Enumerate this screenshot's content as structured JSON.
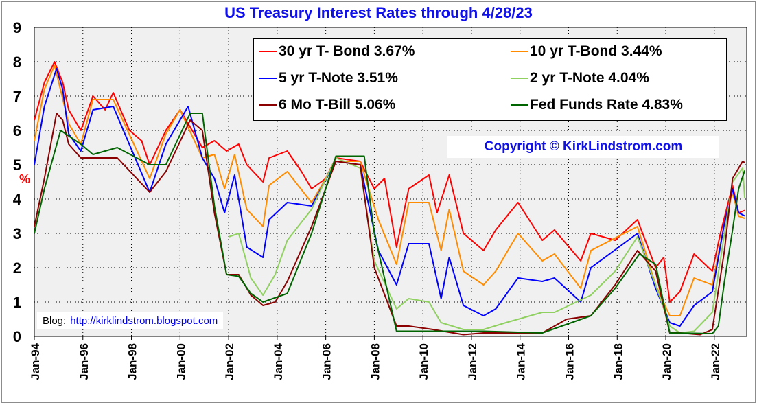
{
  "chart_data": {
    "type": "line",
    "title": "US Treasury Interest Rates through 4/28/23",
    "ylabel": "%",
    "ylim": [
      0,
      9
    ],
    "yticks": [
      "0",
      "1",
      "2",
      "3",
      "4",
      "5",
      "6",
      "7",
      "8",
      "9"
    ],
    "xlim": [
      "1994-01",
      "2023-05"
    ],
    "xticks": [
      {
        "label": "Jan-94",
        "date": "1994-01"
      },
      {
        "label": "Jan-96",
        "date": "1996-01"
      },
      {
        "label": "Jan-98",
        "date": "1998-01"
      },
      {
        "label": "Jan-00",
        "date": "2000-01"
      },
      {
        "label": "Jan-02",
        "date": "2002-01"
      },
      {
        "label": "Jan-04",
        "date": "2004-01"
      },
      {
        "label": "Jan-06",
        "date": "2006-01"
      },
      {
        "label": "Jan-08",
        "date": "2008-01"
      },
      {
        "label": "Jan-10",
        "date": "2010-01"
      },
      {
        "label": "Jan-12",
        "date": "2012-01"
      },
      {
        "label": "Jan-14",
        "date": "2014-01"
      },
      {
        "label": "Jan-16",
        "date": "2016-01"
      },
      {
        "label": "Jan-18",
        "date": "2018-01"
      },
      {
        "label": "Jan-20",
        "date": "2020-01"
      },
      {
        "label": "Jan-22",
        "date": "2022-01"
      }
    ],
    "grid": true,
    "legend_position": "top-right",
    "series": [
      {
        "name": "30 yr T- Bond 3.67%",
        "color": "#ff0000",
        "points": [
          [
            "1994-01",
            6.3
          ],
          [
            "1994-06",
            7.4
          ],
          [
            "1994-11",
            8.0
          ],
          [
            "1995-03",
            7.4
          ],
          [
            "1995-06",
            6.6
          ],
          [
            "1995-12",
            6.0
          ],
          [
            "1996-06",
            7.0
          ],
          [
            "1996-12",
            6.6
          ],
          [
            "1997-04",
            7.1
          ],
          [
            "1997-12",
            6.0
          ],
          [
            "1998-06",
            5.7
          ],
          [
            "1998-10",
            5.0
          ],
          [
            "1999-06",
            6.0
          ],
          [
            "2000-01",
            6.6
          ],
          [
            "2000-05",
            6.2
          ],
          [
            "2000-12",
            5.5
          ],
          [
            "2001-06",
            5.7
          ],
          [
            "2001-12",
            5.4
          ],
          [
            "2002-06",
            5.6
          ],
          [
            "2002-10",
            5.0
          ],
          [
            "2003-06",
            4.5
          ],
          [
            "2003-09",
            5.2
          ],
          [
            "2004-06",
            5.4
          ],
          [
            "2005-01",
            4.8
          ],
          [
            "2005-06",
            4.3
          ],
          [
            "2006-01",
            4.6
          ],
          [
            "2006-06",
            5.2
          ],
          [
            "2007-06",
            5.1
          ],
          [
            "2008-01",
            4.3
          ],
          [
            "2008-06",
            4.6
          ],
          [
            "2008-12",
            2.6
          ],
          [
            "2009-06",
            4.3
          ],
          [
            "2010-04",
            4.7
          ],
          [
            "2010-08",
            3.6
          ],
          [
            "2011-02",
            4.7
          ],
          [
            "2011-09",
            3.0
          ],
          [
            "2012-07",
            2.5
          ],
          [
            "2013-01",
            3.1
          ],
          [
            "2013-12",
            3.9
          ],
          [
            "2014-12",
            2.8
          ],
          [
            "2015-06",
            3.1
          ],
          [
            "2016-07",
            2.2
          ],
          [
            "2016-12",
            3.0
          ],
          [
            "2017-12",
            2.8
          ],
          [
            "2018-11",
            3.4
          ],
          [
            "2019-08",
            2.0
          ],
          [
            "2019-12",
            2.3
          ],
          [
            "2020-03",
            1.0
          ],
          [
            "2020-08",
            1.3
          ],
          [
            "2021-03",
            2.4
          ],
          [
            "2021-12",
            1.9
          ],
          [
            "2022-04",
            3.0
          ],
          [
            "2022-10",
            4.4
          ],
          [
            "2023-01",
            3.6
          ],
          [
            "2023-04",
            3.67
          ]
        ]
      },
      {
        "name": "10 yr T-Bond 3.44%",
        "color": "#ff8c00",
        "points": [
          [
            "1994-01",
            5.7
          ],
          [
            "1994-06",
            7.2
          ],
          [
            "1994-11",
            7.9
          ],
          [
            "1995-06",
            6.2
          ],
          [
            "1995-12",
            5.6
          ],
          [
            "1996-06",
            6.9
          ],
          [
            "1997-04",
            6.9
          ],
          [
            "1998-10",
            4.6
          ],
          [
            "1999-06",
            5.9
          ],
          [
            "2000-01",
            6.6
          ],
          [
            "2000-12",
            5.2
          ],
          [
            "2001-06",
            5.3
          ],
          [
            "2001-11",
            4.3
          ],
          [
            "2002-04",
            5.3
          ],
          [
            "2002-10",
            3.7
          ],
          [
            "2003-06",
            3.2
          ],
          [
            "2003-09",
            4.4
          ],
          [
            "2004-06",
            4.8
          ],
          [
            "2005-06",
            3.9
          ],
          [
            "2006-06",
            5.1
          ],
          [
            "2007-06",
            5.1
          ],
          [
            "2008-03",
            3.4
          ],
          [
            "2008-12",
            2.1
          ],
          [
            "2009-06",
            3.9
          ],
          [
            "2010-04",
            3.9
          ],
          [
            "2010-10",
            2.5
          ],
          [
            "2011-02",
            3.7
          ],
          [
            "2011-09",
            1.9
          ],
          [
            "2012-07",
            1.5
          ],
          [
            "2013-01",
            1.9
          ],
          [
            "2013-12",
            3.0
          ],
          [
            "2014-12",
            2.2
          ],
          [
            "2015-06",
            2.4
          ],
          [
            "2016-07",
            1.4
          ],
          [
            "2016-12",
            2.5
          ],
          [
            "2018-11",
            3.2
          ],
          [
            "2019-08",
            1.5
          ],
          [
            "2020-03",
            0.6
          ],
          [
            "2020-08",
            0.6
          ],
          [
            "2021-03",
            1.7
          ],
          [
            "2021-12",
            1.5
          ],
          [
            "2022-06",
            3.3
          ],
          [
            "2022-10",
            4.2
          ],
          [
            "2023-01",
            3.5
          ],
          [
            "2023-04",
            3.44
          ]
        ]
      },
      {
        "name": "5 yr T-Note 3.51%",
        "color": "#0000ff",
        "points": [
          [
            "1994-01",
            5.0
          ],
          [
            "1994-06",
            6.7
          ],
          [
            "1994-12",
            7.8
          ],
          [
            "1995-03",
            7.2
          ],
          [
            "1995-06",
            5.9
          ],
          [
            "1995-12",
            5.4
          ],
          [
            "1996-06",
            6.6
          ],
          [
            "1997-04",
            6.7
          ],
          [
            "1998-10",
            4.2
          ],
          [
            "1999-06",
            5.6
          ],
          [
            "2000-05",
            6.7
          ],
          [
            "2000-12",
            5.2
          ],
          [
            "2001-06",
            4.6
          ],
          [
            "2001-11",
            3.6
          ],
          [
            "2002-04",
            4.7
          ],
          [
            "2002-10",
            2.6
          ],
          [
            "2003-06",
            2.3
          ],
          [
            "2003-09",
            3.4
          ],
          [
            "2004-06",
            3.9
          ],
          [
            "2005-06",
            3.8
          ],
          [
            "2006-06",
            5.1
          ],
          [
            "2007-06",
            5.0
          ],
          [
            "2008-03",
            2.5
          ],
          [
            "2008-12",
            1.5
          ],
          [
            "2009-06",
            2.7
          ],
          [
            "2010-04",
            2.7
          ],
          [
            "2010-10",
            1.1
          ],
          [
            "2011-02",
            2.3
          ],
          [
            "2011-09",
            0.9
          ],
          [
            "2012-07",
            0.6
          ],
          [
            "2013-01",
            0.8
          ],
          [
            "2013-12",
            1.7
          ],
          [
            "2014-12",
            1.6
          ],
          [
            "2015-06",
            1.7
          ],
          [
            "2016-07",
            1.0
          ],
          [
            "2016-12",
            2.0
          ],
          [
            "2018-11",
            3.0
          ],
          [
            "2019-08",
            1.4
          ],
          [
            "2020-03",
            0.4
          ],
          [
            "2020-08",
            0.3
          ],
          [
            "2021-03",
            0.9
          ],
          [
            "2021-12",
            1.3
          ],
          [
            "2022-06",
            3.3
          ],
          [
            "2022-10",
            4.3
          ],
          [
            "2023-01",
            3.6
          ],
          [
            "2023-04",
            3.51
          ]
        ]
      },
      {
        "name": "2 yr T-Note 4.04%",
        "color": "#90d060",
        "points": [
          [
            "2002-01",
            2.9
          ],
          [
            "2002-06",
            3.0
          ],
          [
            "2002-12",
            1.7
          ],
          [
            "2003-06",
            1.2
          ],
          [
            "2003-12",
            1.8
          ],
          [
            "2004-06",
            2.8
          ],
          [
            "2005-06",
            3.7
          ],
          [
            "2006-06",
            5.2
          ],
          [
            "2007-06",
            4.9
          ],
          [
            "2008-01",
            2.2
          ],
          [
            "2008-12",
            0.8
          ],
          [
            "2009-06",
            1.1
          ],
          [
            "2010-04",
            1.0
          ],
          [
            "2010-10",
            0.4
          ],
          [
            "2011-09",
            0.2
          ],
          [
            "2012-07",
            0.2
          ],
          [
            "2013-06",
            0.4
          ],
          [
            "2014-12",
            0.7
          ],
          [
            "2015-06",
            0.7
          ],
          [
            "2016-12",
            1.2
          ],
          [
            "2017-12",
            1.9
          ],
          [
            "2018-11",
            2.9
          ],
          [
            "2019-08",
            1.5
          ],
          [
            "2020-03",
            0.3
          ],
          [
            "2020-08",
            0.1
          ],
          [
            "2021-03",
            0.15
          ],
          [
            "2021-12",
            0.7
          ],
          [
            "2022-06",
            3.0
          ],
          [
            "2022-10",
            4.5
          ],
          [
            "2023-03",
            4.9
          ],
          [
            "2023-04",
            4.04
          ]
        ]
      },
      {
        "name": "6 Mo T-Bill 5.06%",
        "color": "#8b0000",
        "points": [
          [
            "1994-01",
            3.2
          ],
          [
            "1994-06",
            4.6
          ],
          [
            "1994-12",
            6.5
          ],
          [
            "1995-03",
            6.3
          ],
          [
            "1995-06",
            5.6
          ],
          [
            "1995-12",
            5.2
          ],
          [
            "1996-06",
            5.2
          ],
          [
            "1997-06",
            5.2
          ],
          [
            "1998-10",
            4.2
          ],
          [
            "1999-06",
            4.8
          ],
          [
            "2000-06",
            6.3
          ],
          [
            "2000-12",
            6.0
          ],
          [
            "2001-06",
            3.6
          ],
          [
            "2001-12",
            1.8
          ],
          [
            "2002-06",
            1.8
          ],
          [
            "2002-12",
            1.2
          ],
          [
            "2003-06",
            0.9
          ],
          [
            "2003-12",
            1.0
          ],
          [
            "2004-06",
            1.6
          ],
          [
            "2005-06",
            3.2
          ],
          [
            "2006-06",
            5.1
          ],
          [
            "2007-06",
            5.0
          ],
          [
            "2008-01",
            2.0
          ],
          [
            "2008-12",
            0.3
          ],
          [
            "2009-06",
            0.3
          ],
          [
            "2010-06",
            0.2
          ],
          [
            "2011-09",
            0.05
          ],
          [
            "2012-07",
            0.1
          ],
          [
            "2013-06",
            0.1
          ],
          [
            "2014-12",
            0.1
          ],
          [
            "2015-12",
            0.5
          ],
          [
            "2016-12",
            0.6
          ],
          [
            "2017-12",
            1.5
          ],
          [
            "2018-11",
            2.5
          ],
          [
            "2019-08",
            1.9
          ],
          [
            "2020-03",
            0.1
          ],
          [
            "2020-08",
            0.1
          ],
          [
            "2021-06",
            0.05
          ],
          [
            "2021-12",
            0.2
          ],
          [
            "2022-06",
            2.5
          ],
          [
            "2022-10",
            4.6
          ],
          [
            "2023-03",
            5.1
          ],
          [
            "2023-04",
            5.06
          ]
        ]
      },
      {
        "name": "Fed Funds Rate 4.83%",
        "color": "#006400",
        "points": [
          [
            "1994-01",
            3.0
          ],
          [
            "1994-06",
            4.3
          ],
          [
            "1995-02",
            6.0
          ],
          [
            "1995-12",
            5.6
          ],
          [
            "1996-06",
            5.3
          ],
          [
            "1997-06",
            5.5
          ],
          [
            "1998-10",
            5.0
          ],
          [
            "1999-06",
            5.0
          ],
          [
            "2000-06",
            6.5
          ],
          [
            "2000-12",
            6.5
          ],
          [
            "2001-06",
            3.8
          ],
          [
            "2001-12",
            1.8
          ],
          [
            "2002-06",
            1.75
          ],
          [
            "2002-12",
            1.25
          ],
          [
            "2003-06",
            1.0
          ],
          [
            "2004-06",
            1.25
          ],
          [
            "2005-06",
            3.0
          ],
          [
            "2006-06",
            5.25
          ],
          [
            "2007-08",
            5.25
          ],
          [
            "2008-01",
            3.0
          ],
          [
            "2008-12",
            0.15
          ],
          [
            "2010-06",
            0.15
          ],
          [
            "2012-07",
            0.15
          ],
          [
            "2014-12",
            0.1
          ],
          [
            "2015-12",
            0.35
          ],
          [
            "2016-12",
            0.6
          ],
          [
            "2017-12",
            1.4
          ],
          [
            "2018-12",
            2.4
          ],
          [
            "2019-08",
            2.1
          ],
          [
            "2020-03",
            0.1
          ],
          [
            "2021-12",
            0.08
          ],
          [
            "2022-03",
            0.3
          ],
          [
            "2022-06",
            1.6
          ],
          [
            "2022-10",
            3.1
          ],
          [
            "2023-01",
            4.3
          ],
          [
            "2023-04",
            4.83
          ]
        ]
      }
    ]
  },
  "legend": {
    "item_30yr": "30 yr T- Bond 3.67%",
    "item_10yr": "10 yr T-Bond 3.44%",
    "item_5yr": "5 yr T-Note 3.51%",
    "item_2yr": "2 yr T-Note 4.04%",
    "item_6mo": "6 Mo T-Bill 5.06%",
    "item_fed": "Fed Funds Rate 4.83%"
  },
  "copyright": "Copyright ©  KirkLindstrom.com",
  "blog": {
    "label": "Blog:",
    "link_text": "http://kirklindstrom.blogspot.com"
  },
  "colors": {
    "title": "#1010e8",
    "plot_background": "#f0f0f0",
    "grid": "#000000"
  }
}
